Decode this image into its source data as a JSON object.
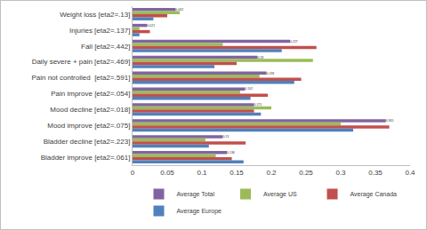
{
  "chart_data": {
    "type": "bar",
    "orientation": "horizontal",
    "categories": [
      "Weight loss [eta2=.13]",
      "Injuries [eta2=.137]",
      "Fall [eta2=.442]",
      "Daily severe + pain [eta2=.469]",
      "Pain not controlled  [eta2=.591]",
      "Pain improve [eta2=.054]",
      "Mood decline [eta2=.018]",
      "Mood improve [eta2=.075]",
      "Bladder decline [eta2=.223]",
      "Bladder improve [eta2=.061]"
    ],
    "series": [
      {
        "name": "Average Total",
        "color": "#8064a2",
        "data_labels": true,
        "values": [
          0.062,
          0.021,
          0.227,
          0.18,
          0.193,
          0.162,
          0.175,
          0.365,
          0.13,
          0.136
        ]
      },
      {
        "name": "Average US",
        "color": "#9bbb59",
        "values": [
          0.068,
          0.01,
          0.13,
          0.26,
          0.183,
          0.155,
          0.2,
          0.3,
          0.105,
          0.12
        ]
      },
      {
        "name": "Average Canada",
        "color": "#c0504d",
        "values": [
          0.05,
          0.025,
          0.265,
          0.15,
          0.243,
          0.195,
          0.175,
          0.37,
          0.163,
          0.143
        ]
      },
      {
        "name": "Average Europe",
        "color": "#4f81bd",
        "values": [
          0.03,
          0.01,
          0.215,
          0.118,
          0.233,
          0.17,
          0.185,
          0.318,
          0.11,
          0.16
        ]
      }
    ],
    "xlim": [
      0,
      0.4
    ],
    "xticks": [
      0,
      0.05,
      0.1,
      0.15,
      0.2,
      0.25,
      0.3,
      0.35,
      0.4
    ],
    "grid": false,
    "legend": "bottom"
  }
}
